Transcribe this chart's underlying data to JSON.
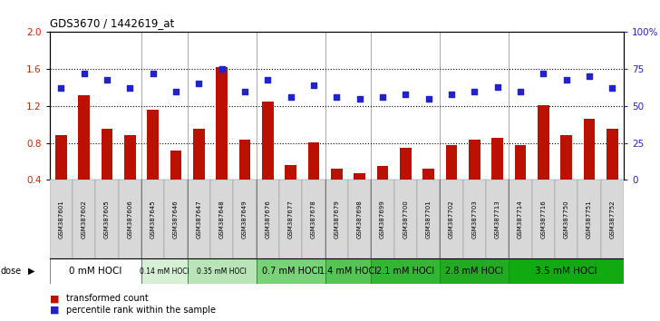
{
  "title": "GDS3670 / 1442619_at",
  "samples": [
    "GSM387601",
    "GSM387602",
    "GSM387605",
    "GSM387606",
    "GSM387645",
    "GSM387646",
    "GSM387647",
    "GSM387648",
    "GSM387649",
    "GSM387676",
    "GSM387677",
    "GSM387678",
    "GSM387679",
    "GSM387698",
    "GSM387699",
    "GSM387700",
    "GSM387701",
    "GSM387702",
    "GSM387703",
    "GSM387713",
    "GSM387714",
    "GSM387716",
    "GSM387750",
    "GSM387751",
    "GSM387752"
  ],
  "bar_values": [
    0.88,
    1.32,
    0.95,
    0.88,
    1.16,
    0.72,
    0.95,
    1.62,
    0.83,
    1.25,
    0.56,
    0.81,
    0.52,
    0.47,
    0.55,
    0.75,
    0.52,
    0.78,
    0.83,
    0.85,
    0.78,
    1.21,
    0.88,
    1.06,
    0.95
  ],
  "dot_values": [
    62,
    72,
    68,
    62,
    72,
    60,
    65,
    75,
    60,
    68,
    56,
    64,
    56,
    55,
    56,
    58,
    55,
    58,
    60,
    63,
    60,
    72,
    68,
    70,
    62
  ],
  "groups": [
    {
      "label": "0 mM HOCl",
      "start": 0,
      "end": 4,
      "color": "#ffffff",
      "font": 7.5
    },
    {
      "label": "0.14 mM HOCl",
      "start": 4,
      "end": 6,
      "color": "#d6f0d6",
      "font": 5.5
    },
    {
      "label": "0.35 mM HOCl",
      "start": 6,
      "end": 9,
      "color": "#b8e4b8",
      "font": 5.5
    },
    {
      "label": "0.7 mM HOCl",
      "start": 9,
      "end": 12,
      "color": "#78d278",
      "font": 7.0
    },
    {
      "label": "1.4 mM HOCl",
      "start": 12,
      "end": 14,
      "color": "#55c455",
      "font": 7.0
    },
    {
      "label": "2.1 mM HOCl",
      "start": 14,
      "end": 17,
      "color": "#33b633",
      "font": 7.0
    },
    {
      "label": "2.8 mM HOCl",
      "start": 17,
      "end": 20,
      "color": "#22aa22",
      "font": 7.0
    },
    {
      "label": "3.5 mM HOCl",
      "start": 20,
      "end": 25,
      "color": "#11aa11",
      "font": 7.5
    }
  ],
  "bar_color": "#bb1100",
  "dot_color": "#2222cc",
  "ylim_left": [
    0.4,
    2.0
  ],
  "ylim_right": [
    0,
    100
  ],
  "yticks_left": [
    0.4,
    0.8,
    1.2,
    1.6,
    2.0
  ],
  "yticks_right": [
    0,
    25,
    50,
    75,
    100
  ],
  "yticklabels_right": [
    "0",
    "25",
    "50",
    "75",
    "100%"
  ],
  "dotted_lines": [
    0.8,
    1.2,
    1.6
  ],
  "axis_label_color_left": "#cc2200",
  "axis_label_color_right": "#2222cc"
}
